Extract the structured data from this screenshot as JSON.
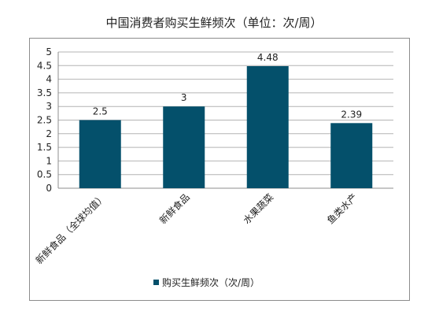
{
  "chart_data": {
    "type": "bar",
    "title": "中国消费者购买生鲜频次（单位：次/周）",
    "categories": [
      "新鲜食品（全球均值）",
      "新鲜食品",
      "水果蔬菜",
      "鱼类水产"
    ],
    "series": [
      {
        "name": "购买生鲜频次（次/周）",
        "values": [
          2.5,
          3,
          4.48,
          2.39
        ],
        "color": "#04506b"
      }
    ],
    "data_labels": [
      "2.5",
      "3",
      "4.48",
      "2.39"
    ],
    "y_ticks": [
      "0",
      "0.5",
      "1",
      "1.5",
      "2",
      "2.5",
      "3",
      "3.5",
      "4",
      "4.5",
      "5"
    ],
    "ylim": [
      0,
      5
    ],
    "grid": true,
    "legend_position": "bottom"
  }
}
